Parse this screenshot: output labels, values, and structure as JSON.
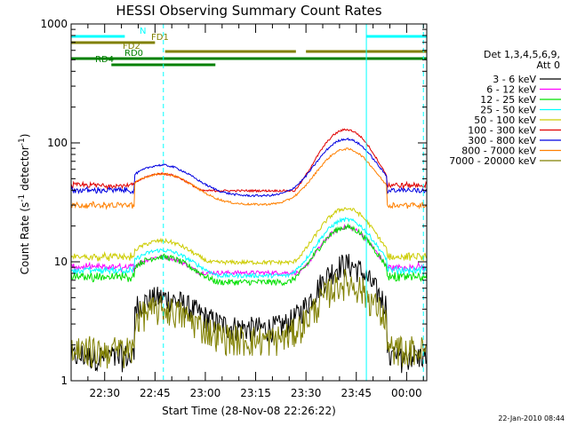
{
  "chart_data": {
    "type": "line",
    "title": "HESSI Observing Summary Count Rates",
    "xlabel": "Start Time (28-Nov-08 22:26:22)",
    "ylabel_main": "Count Rate (s",
    "ylabel_sup1": "-1",
    "ylabel_mid": " detector",
    "ylabel_sup2": "-1",
    "ylabel_end": ")",
    "y_scale": "log",
    "ylim": [
      1,
      1000
    ],
    "xlim_minutes": [
      -6,
      100
    ],
    "x_ticks": [
      {
        "m": 4,
        "label": "22:30"
      },
      {
        "m": 19,
        "label": "22:45"
      },
      {
        "m": 34,
        "label": "23:00"
      },
      {
        "m": 49,
        "label": "23:15"
      },
      {
        "m": 64,
        "label": "23:30"
      },
      {
        "m": 79,
        "label": "23:45"
      },
      {
        "m": 94,
        "label": "00:00"
      }
    ],
    "y_ticks": [
      {
        "v": 1,
        "label": "1"
      },
      {
        "v": 10,
        "label": "10"
      },
      {
        "v": 100,
        "label": "100"
      },
      {
        "v": 1000,
        "label": "1000"
      }
    ],
    "legend_header": [
      "Det 1,3,4,5,6,9,",
      "Att 0"
    ],
    "series": [
      {
        "name": "3 - 6 keV",
        "color": "#000000",
        "day_mean": 5,
        "day_peak": 7.5,
        "day_gap": 1.6,
        "noise": 0.25
      },
      {
        "name": "6 - 12 keV",
        "color": "#ff00ff",
        "day_mean": 11,
        "day_peak": 15,
        "day_gap": 9,
        "noise": 0.04
      },
      {
        "name": "12 - 25 keV",
        "color": "#00e000",
        "day_mean": 11,
        "day_peak": 15,
        "day_gap": 7.5,
        "noise": 0.06
      },
      {
        "name": "25 - 50 keV",
        "color": "#00ffff",
        "day_mean": 12.5,
        "day_peak": 17.5,
        "day_gap": 8.5,
        "noise": 0.04
      },
      {
        "name": "50 - 100 keV",
        "color": "#cccc00",
        "day_mean": 15,
        "day_peak": 22,
        "day_gap": 11,
        "noise": 0.04
      },
      {
        "name": "100 - 300 keV",
        "color": "#e00000",
        "day_mean": 55,
        "day_peak": 110,
        "day_gap": 44,
        "noise": 0.02
      },
      {
        "name": "300 - 800 keV",
        "color": "#0000e0",
        "day_mean": 65,
        "day_peak": 80,
        "day_gap": 40,
        "noise": 0.02
      },
      {
        "name": "800 - 7000 keV",
        "color": "#ff8000",
        "day_mean": 55,
        "day_peak": 65,
        "day_gap": 30,
        "noise": 0.02
      },
      {
        "name": "7000 - 20000 keV",
        "color": "#808000",
        "day_mean": 4,
        "day_peak": 5,
        "day_gap": 1.8,
        "noise": 0.3
      }
    ],
    "flag_bars": [
      {
        "label": "N",
        "color": "#00ffff",
        "segments": [
          [
            -6,
            10
          ],
          [
            82,
            100
          ]
        ]
      },
      {
        "label": "FD1",
        "color": "#808000",
        "segments": [
          [
            -6,
            19
          ]
        ]
      },
      {
        "label": "FD2",
        "color": "#808000",
        "segments": [
          [
            22,
            61
          ],
          [
            64,
            100
          ]
        ]
      },
      {
        "label": "RD0",
        "color": "#008000",
        "segments": [
          [
            -6,
            100
          ]
        ]
      },
      {
        "label": "RD4",
        "color": "#008000",
        "segments": [
          [
            6,
            37
          ]
        ]
      }
    ],
    "night_lines": [
      {
        "m": -6,
        "style": "solid"
      },
      {
        "m": 21.5,
        "style": "dashed"
      },
      {
        "m": 82,
        "style": "solid"
      },
      {
        "m": 99,
        "style": "dashed"
      }
    ],
    "saa_intervals": [
      [
        -6,
        13
      ],
      [
        90,
        100
      ]
    ],
    "grid": false,
    "legend_position": "right"
  },
  "footer_stamp": "22-Jan-2010 08:44"
}
